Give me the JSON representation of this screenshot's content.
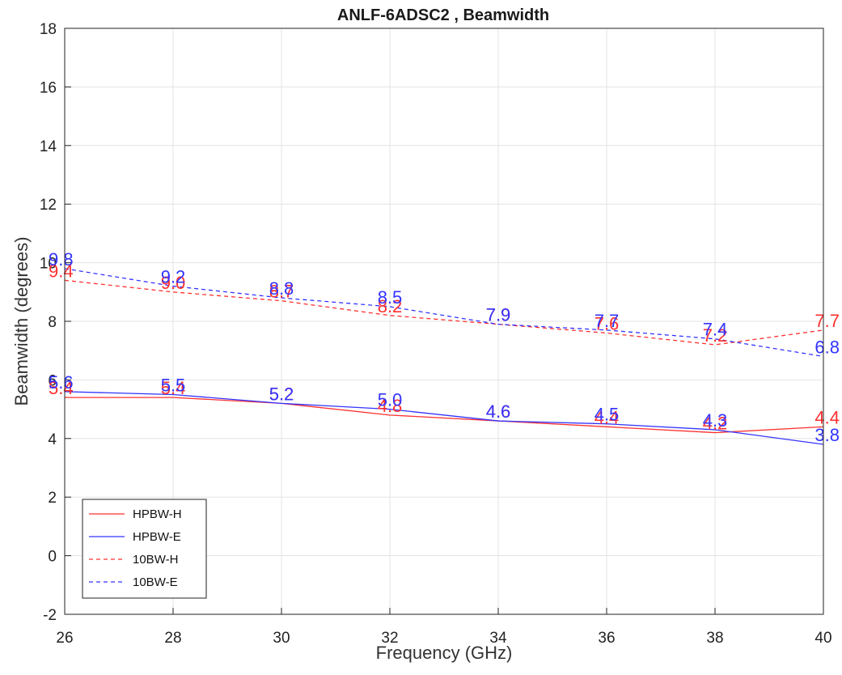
{
  "chart_data": {
    "type": "line",
    "title": "ANLF-6ADSC2 , Beamwidth",
    "xlabel": "Frequency (GHz)",
    "ylabel": "Beamwidth (degrees)",
    "x": [
      26,
      28,
      30,
      32,
      34,
      36,
      38,
      40
    ],
    "xlim": [
      26,
      40
    ],
    "ylim": [
      -2,
      18
    ],
    "xticks": [
      26,
      28,
      30,
      32,
      34,
      36,
      38,
      40
    ],
    "yticks": [
      -2,
      0,
      2,
      4,
      6,
      8,
      10,
      12,
      14,
      16,
      18
    ],
    "grid": true,
    "legend_position": "bottom-left",
    "series": [
      {
        "name": "HPBW-H",
        "color": "#ff3030",
        "dash": false,
        "values": [
          5.4,
          5.4,
          5.2,
          4.8,
          4.6,
          4.4,
          4.2,
          4.4
        ]
      },
      {
        "name": "HPBW-E",
        "color": "#3333ff",
        "dash": false,
        "values": [
          5.6,
          5.5,
          5.2,
          5.0,
          4.6,
          4.5,
          4.3,
          3.8
        ]
      },
      {
        "name": "10BW-H",
        "color": "#ff3030",
        "dash": true,
        "values": [
          9.4,
          9.0,
          8.7,
          8.2,
          7.9,
          7.6,
          7.2,
          7.7
        ]
      },
      {
        "name": "10BW-E",
        "color": "#3333ff",
        "dash": true,
        "values": [
          9.8,
          9.2,
          8.8,
          8.5,
          7.9,
          7.7,
          7.4,
          6.8
        ]
      }
    ]
  }
}
